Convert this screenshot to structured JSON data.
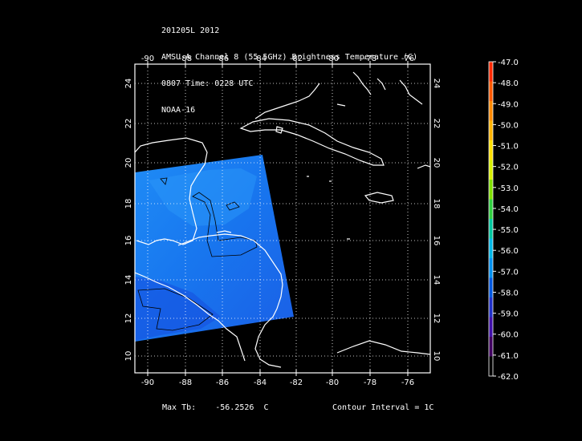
{
  "header": {
    "line1": "201205L 2012",
    "line2": "AMSU-A Channel 8 (55.5GHz) Brightness Temperature (C)",
    "line3": "0807 Time: 0228 UTC",
    "line4": "NOAA-16"
  },
  "map": {
    "lon_ticks": [
      "-90",
      "-88",
      "-86",
      "-84",
      "-82",
      "-80",
      "-78",
      "-76"
    ],
    "lat_ticks": [
      "24",
      "22",
      "20",
      "18",
      "16",
      "14",
      "12",
      "10"
    ],
    "lon_range": [
      -90.6,
      -74.4
    ],
    "lat_range": [
      9.2,
      25.0
    ],
    "swath_color": "#1a7cf0",
    "coast_color": "#ffffff",
    "grid_color": "#ffffff"
  },
  "colorbar": {
    "labels": [
      "-47.0",
      "-48.0",
      "-49.0",
      "-50.0",
      "-51.0",
      "-52.0",
      "-53.0",
      "-54.0",
      "-55.0",
      "-56.0",
      "-57.0",
      "-58.0",
      "-59.0",
      "-60.0",
      "-61.0",
      "-62.0"
    ],
    "colors": [
      "#ff2a00",
      "#ff5a00",
      "#ff8a00",
      "#ffb400",
      "#ffe000",
      "#d8f000",
      "#80e000",
      "#30d040",
      "#00c8a0",
      "#00b8e8",
      "#0090f0",
      "#0058e0",
      "#2030c8",
      "#4010a8",
      "#400060",
      "#000000"
    ]
  },
  "footer": {
    "max_tb_label": "Max Tb:",
    "max_tb_value": "-56.2526",
    "max_tb_unit": "C",
    "contour": "Contour Interval = 1C"
  }
}
